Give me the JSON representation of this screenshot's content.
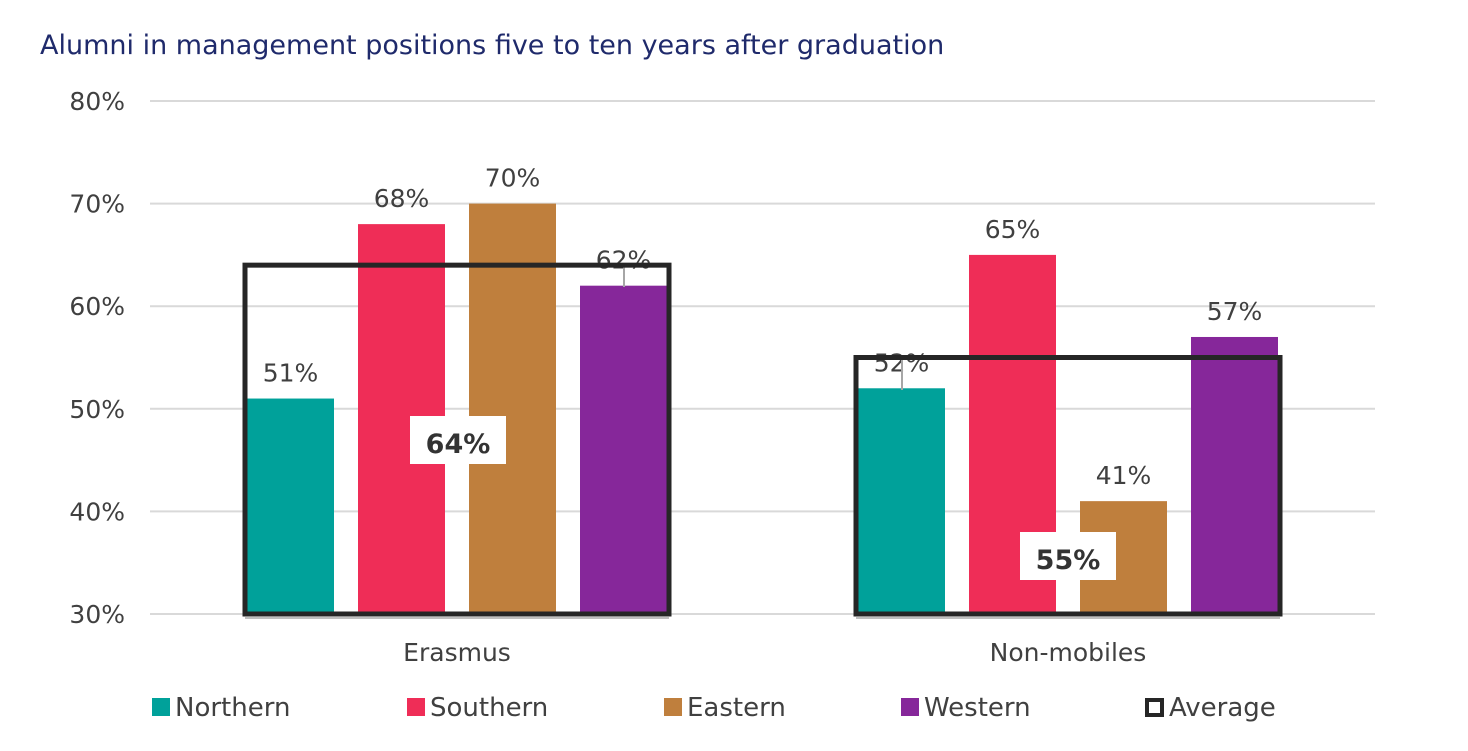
{
  "chart_data": {
    "type": "bar",
    "title": "Alumni in management positions five to ten years after graduation",
    "categories": [
      "Erasmus",
      "Non-mobiles"
    ],
    "series": [
      {
        "name": "Northern",
        "color": "#00a19a",
        "values": [
          51,
          52
        ],
        "labels": [
          "51%",
          "52%"
        ]
      },
      {
        "name": "Southern",
        "color": "#ef2d57",
        "values": [
          68,
          65
        ],
        "labels": [
          "68%",
          "65%"
        ]
      },
      {
        "name": "Eastern",
        "color": "#bf7f3d",
        "values": [
          70,
          41
        ],
        "labels": [
          "70%",
          "41%"
        ]
      },
      {
        "name": "Western",
        "color": "#86279a",
        "values": [
          62,
          57
        ],
        "labels": [
          "62%",
          "57%"
        ]
      }
    ],
    "average": {
      "name": "Average",
      "values": [
        64,
        55
      ],
      "labels": [
        "64%",
        "55%"
      ]
    },
    "ylim": [
      30,
      80
    ],
    "yticks": [
      "30%",
      "40%",
      "50%",
      "60%",
      "70%",
      "80%"
    ],
    "grid": true,
    "legend_position": "bottom"
  }
}
